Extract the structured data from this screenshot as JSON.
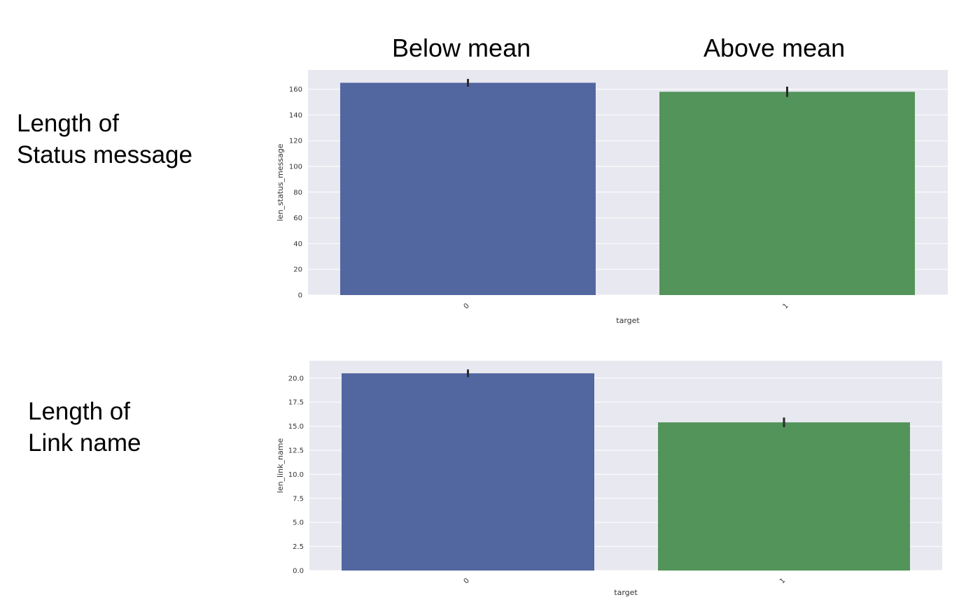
{
  "headers": {
    "below": "Below mean",
    "above": "Above mean"
  },
  "rows": [
    {
      "line1": "Length of",
      "line2": "Status message"
    },
    {
      "line1": "Length of",
      "line2": "Link name"
    }
  ],
  "colors": {
    "series0": "#5266a0",
    "series1": "#529459",
    "plot_bg": "#e8e8f0",
    "grid": "#ffffff"
  },
  "chart_data": [
    {
      "type": "bar",
      "categories": [
        "0",
        "1"
      ],
      "values": [
        165,
        158
      ],
      "error_bars": [
        [
          162,
          168
        ],
        [
          154,
          162
        ]
      ],
      "xlabel": "target",
      "ylabel": "len_status_message",
      "ylim": [
        0,
        175
      ],
      "yticks": [
        0,
        20,
        40,
        60,
        80,
        100,
        120,
        140,
        160
      ],
      "ytick_labels": [
        "0",
        "20",
        "40",
        "60",
        "80",
        "100",
        "120",
        "140",
        "160"
      ],
      "grid": true
    },
    {
      "type": "bar",
      "categories": [
        "0",
        "1"
      ],
      "values": [
        20.5,
        15.4
      ],
      "error_bars": [
        [
          20.1,
          20.9
        ],
        [
          14.9,
          15.9
        ]
      ],
      "xlabel": "target",
      "ylabel": "len_link_name",
      "ylim": [
        0,
        21.8
      ],
      "yticks": [
        0,
        2.5,
        5,
        7.5,
        10,
        12.5,
        15,
        17.5,
        20
      ],
      "ytick_labels": [
        "0.0",
        "2.5",
        "5.0",
        "7.5",
        "10.0",
        "12.5",
        "15.0",
        "17.5",
        "20.0"
      ],
      "grid": true
    }
  ]
}
